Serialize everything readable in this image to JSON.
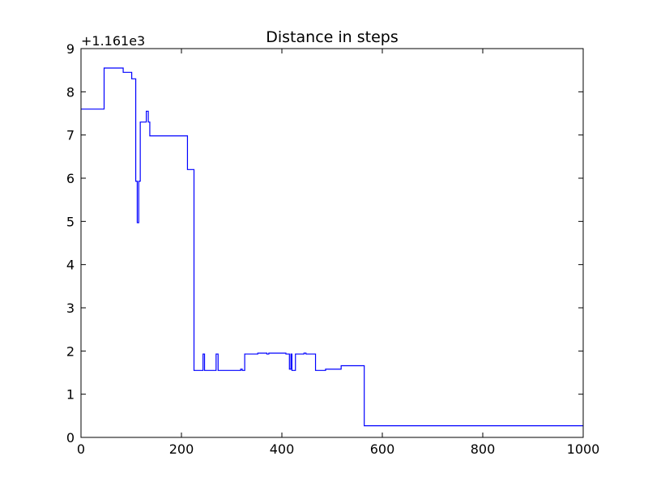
{
  "chart_data": {
    "type": "line",
    "title": "Distance in steps",
    "xlabel": "",
    "ylabel": "",
    "y_offset_label": "+1.161e3",
    "xlim": [
      0,
      1000
    ],
    "ylim": [
      0,
      9
    ],
    "x_ticks": [
      0,
      200,
      400,
      600,
      800,
      1000
    ],
    "y_ticks": [
      0,
      1,
      2,
      3,
      4,
      5,
      6,
      7,
      8,
      9
    ],
    "grid": false,
    "line_color": "#0000ff",
    "series": [
      {
        "x": [
          0,
          46,
          46,
          84,
          84,
          101,
          101,
          109,
          109,
          112,
          112,
          115,
          115,
          118,
          118,
          130,
          130,
          134,
          134,
          137,
          137,
          139,
          139,
          212,
          212,
          225,
          225,
          243,
          243,
          246,
          246,
          269,
          269,
          273,
          273,
          318,
          318,
          321,
          321,
          326,
          326,
          352,
          352,
          370,
          370,
          374,
          374,
          408,
          408,
          415,
          415,
          418,
          418,
          420,
          420,
          427,
          427,
          444,
          444,
          448,
          448,
          467,
          467,
          487,
          487,
          518,
          518,
          564,
          564,
          1000
        ],
        "y": [
          7.6,
          7.6,
          8.55,
          8.55,
          8.45,
          8.45,
          8.3,
          8.3,
          5.93,
          5.93,
          4.97,
          4.97,
          5.93,
          5.93,
          7.3,
          7.3,
          7.55,
          7.55,
          7.3,
          7.3,
          6.98,
          6.98,
          6.98,
          6.98,
          6.2,
          6.2,
          1.55,
          1.55,
          1.93,
          1.93,
          1.55,
          1.55,
          1.93,
          1.93,
          1.55,
          1.55,
          1.58,
          1.58,
          1.55,
          1.55,
          1.93,
          1.93,
          1.95,
          1.95,
          1.93,
          1.93,
          1.95,
          1.95,
          1.93,
          1.93,
          1.58,
          1.58,
          1.93,
          1.93,
          1.55,
          1.55,
          1.93,
          1.93,
          1.95,
          1.95,
          1.93,
          1.93,
          1.55,
          1.55,
          1.58,
          1.58,
          1.66,
          1.66,
          0.27,
          0.27
        ]
      }
    ]
  }
}
